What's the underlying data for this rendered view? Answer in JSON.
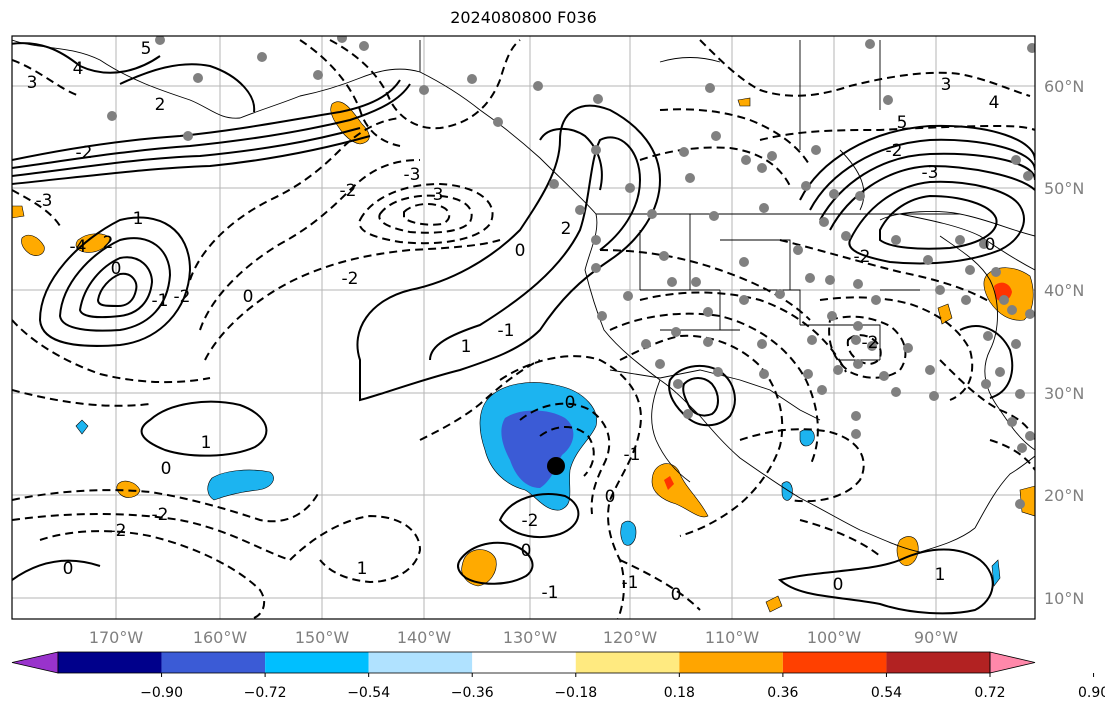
{
  "title": "2024080800 F036",
  "map": {
    "lon_labels": [
      "170°W",
      "160°W",
      "150°W",
      "140°W",
      "130°W",
      "120°W",
      "110°W",
      "100°W",
      "90°W"
    ],
    "lat_labels": [
      "60°N",
      "50°N",
      "40°N",
      "30°N",
      "20°N",
      "10°N"
    ],
    "contour_labels": [
      "5",
      "4",
      "3",
      "2",
      "-2",
      "-3",
      "-4",
      "0",
      "-1",
      "1",
      "-2",
      "0",
      "2",
      "1",
      "0",
      "-2",
      "-2",
      "0",
      "1",
      "-2",
      "-1",
      "0",
      "-1",
      "0",
      "1",
      "-1",
      "0",
      "-1",
      "0",
      "-2",
      "-3",
      "3",
      "-2",
      "0",
      "2",
      "3",
      "4",
      "5",
      "-2",
      "-3",
      "0",
      "-2",
      "-2",
      "0",
      "1"
    ],
    "colors": {
      "negative_strong": "#3b5bd6",
      "negative_medium": "#1cb4f0",
      "positive_weak": "#ffaa00",
      "positive_strong": "#ff3300"
    }
  },
  "colorbar": {
    "ticks": [
      "−0.90",
      "−0.72",
      "−0.54",
      "−0.36",
      "−0.18",
      "0.18",
      "0.36",
      "0.54",
      "0.72",
      "0.90"
    ],
    "colors": [
      "#9933cc",
      "#00008b",
      "#3b5bd6",
      "#00bfff",
      "#b0e2ff",
      "#ffffff",
      "#ffea80",
      "#ffa500",
      "#ff4000",
      "#b22222",
      "#ff88aa"
    ]
  }
}
